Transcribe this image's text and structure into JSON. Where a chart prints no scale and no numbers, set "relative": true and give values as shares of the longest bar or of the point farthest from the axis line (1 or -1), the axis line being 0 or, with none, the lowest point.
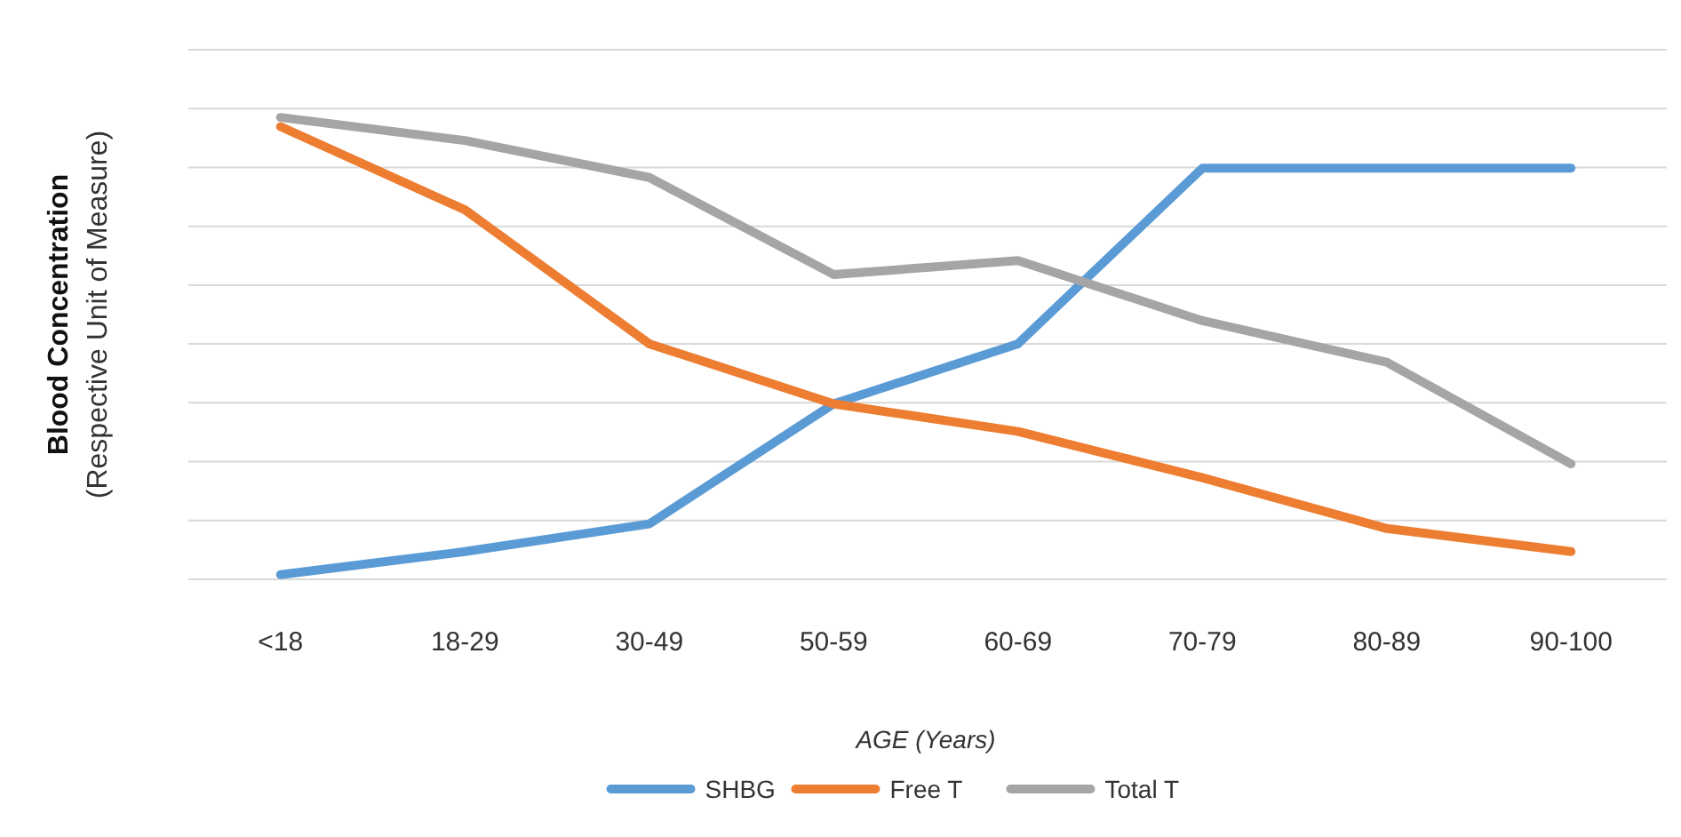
{
  "chart_data": {
    "type": "line",
    "relative": true,
    "xlabel": "AGE (Years)",
    "ylabel": "Blood Concentration\n(Respective Unit of Measure)",
    "categories": [
      "<18",
      "18-29",
      "30-49",
      "50-59",
      "60-69",
      "70-79",
      "80-89",
      "90-100"
    ],
    "grid": "y",
    "legend": "bottom",
    "marker": "none",
    "line_style": "solid",
    "series": [
      {
        "name": "SHBG",
        "color": "#5b9bd5",
        "values": [
          0.01,
          0.06,
          0.12,
          0.38,
          0.51,
          0.89,
          0.89,
          0.89
        ]
      },
      {
        "name": "Free T",
        "color": "#ed7d31",
        "values": [
          0.98,
          0.8,
          0.51,
          0.38,
          0.32,
          0.22,
          0.11,
          0.06
        ]
      },
      {
        "name": "Total T",
        "color": "#a5a5a5",
        "values": [
          1,
          0.95,
          0.87,
          0.66,
          0.69,
          0.56,
          0.47,
          0.25
        ]
      }
    ]
  }
}
